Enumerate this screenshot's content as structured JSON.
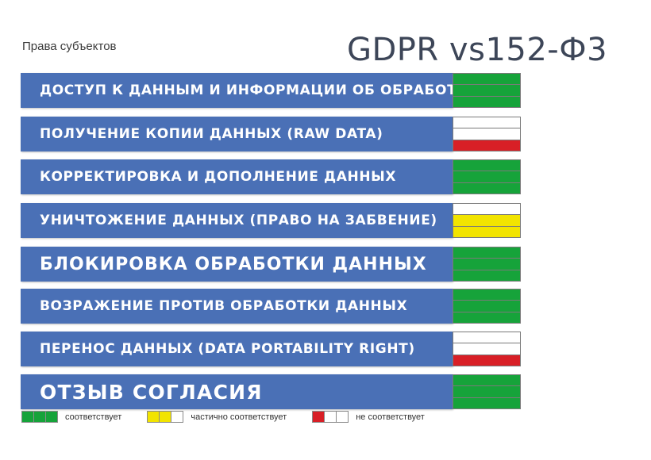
{
  "header": {
    "subtitle": "Права субъектов",
    "title": "GDPR vs152-Ф3"
  },
  "colors": {
    "row_fill": "#4a70b6",
    "green": "#16a33a",
    "yellow": "#f2e400",
    "red": "#d81f26",
    "white": "#ffffff"
  },
  "rows": [
    {
      "label": "ДОСТУП К ДАННЫМ И ИНФОРМАЦИИ ОБ ОБРАБОТКЕ",
      "status": "соответствует",
      "bands": [
        "green",
        "green",
        "green"
      ]
    },
    {
      "label": "ПОЛУЧЕНИЕ КОПИИ ДАННЫХ (RAW DATA)",
      "status": "не соответствует",
      "bands": [
        "white",
        "white",
        "red"
      ]
    },
    {
      "label": "КОРРЕКТИРОВКА И ДОПОЛНЕНИЕ ДАННЫХ",
      "status": "соответствует",
      "bands": [
        "green",
        "green",
        "green"
      ]
    },
    {
      "label": "УНИЧТОЖЕНИЕ ДАННЫХ (ПРАВО НА ЗАБВЕНИЕ)",
      "status": "частично соответствует",
      "bands": [
        "white",
        "yellow",
        "yellow"
      ]
    },
    {
      "label": "БЛОКИРОВКА ОБРАБОТКИ ДАННЫХ",
      "status": "соответствует",
      "bands": [
        "green",
        "green",
        "green"
      ]
    },
    {
      "label": "ВОЗРАЖЕНИЕ ПРОТИВ ОБРАБОТКИ ДАННЫХ",
      "status": "соответствует",
      "bands": [
        "green",
        "green",
        "green"
      ]
    },
    {
      "label": "ПЕРЕНОС ДАННЫХ (DATA PORTABILITY RIGHT)",
      "status": "не соответствует",
      "bands": [
        "white",
        "white",
        "red"
      ]
    },
    {
      "label": "ОТЗЫВ СОГЛАСИЯ",
      "status": "соответствует",
      "bands": [
        "green",
        "green",
        "green"
      ]
    }
  ],
  "legend": [
    {
      "label": "соответствует",
      "swatches": [
        "green",
        "green",
        "green"
      ]
    },
    {
      "label": "частично соответствует",
      "swatches": [
        "yellow",
        "yellow",
        "white"
      ]
    },
    {
      "label": "не соответствует",
      "swatches": [
        "red",
        "white",
        "white"
      ]
    }
  ]
}
